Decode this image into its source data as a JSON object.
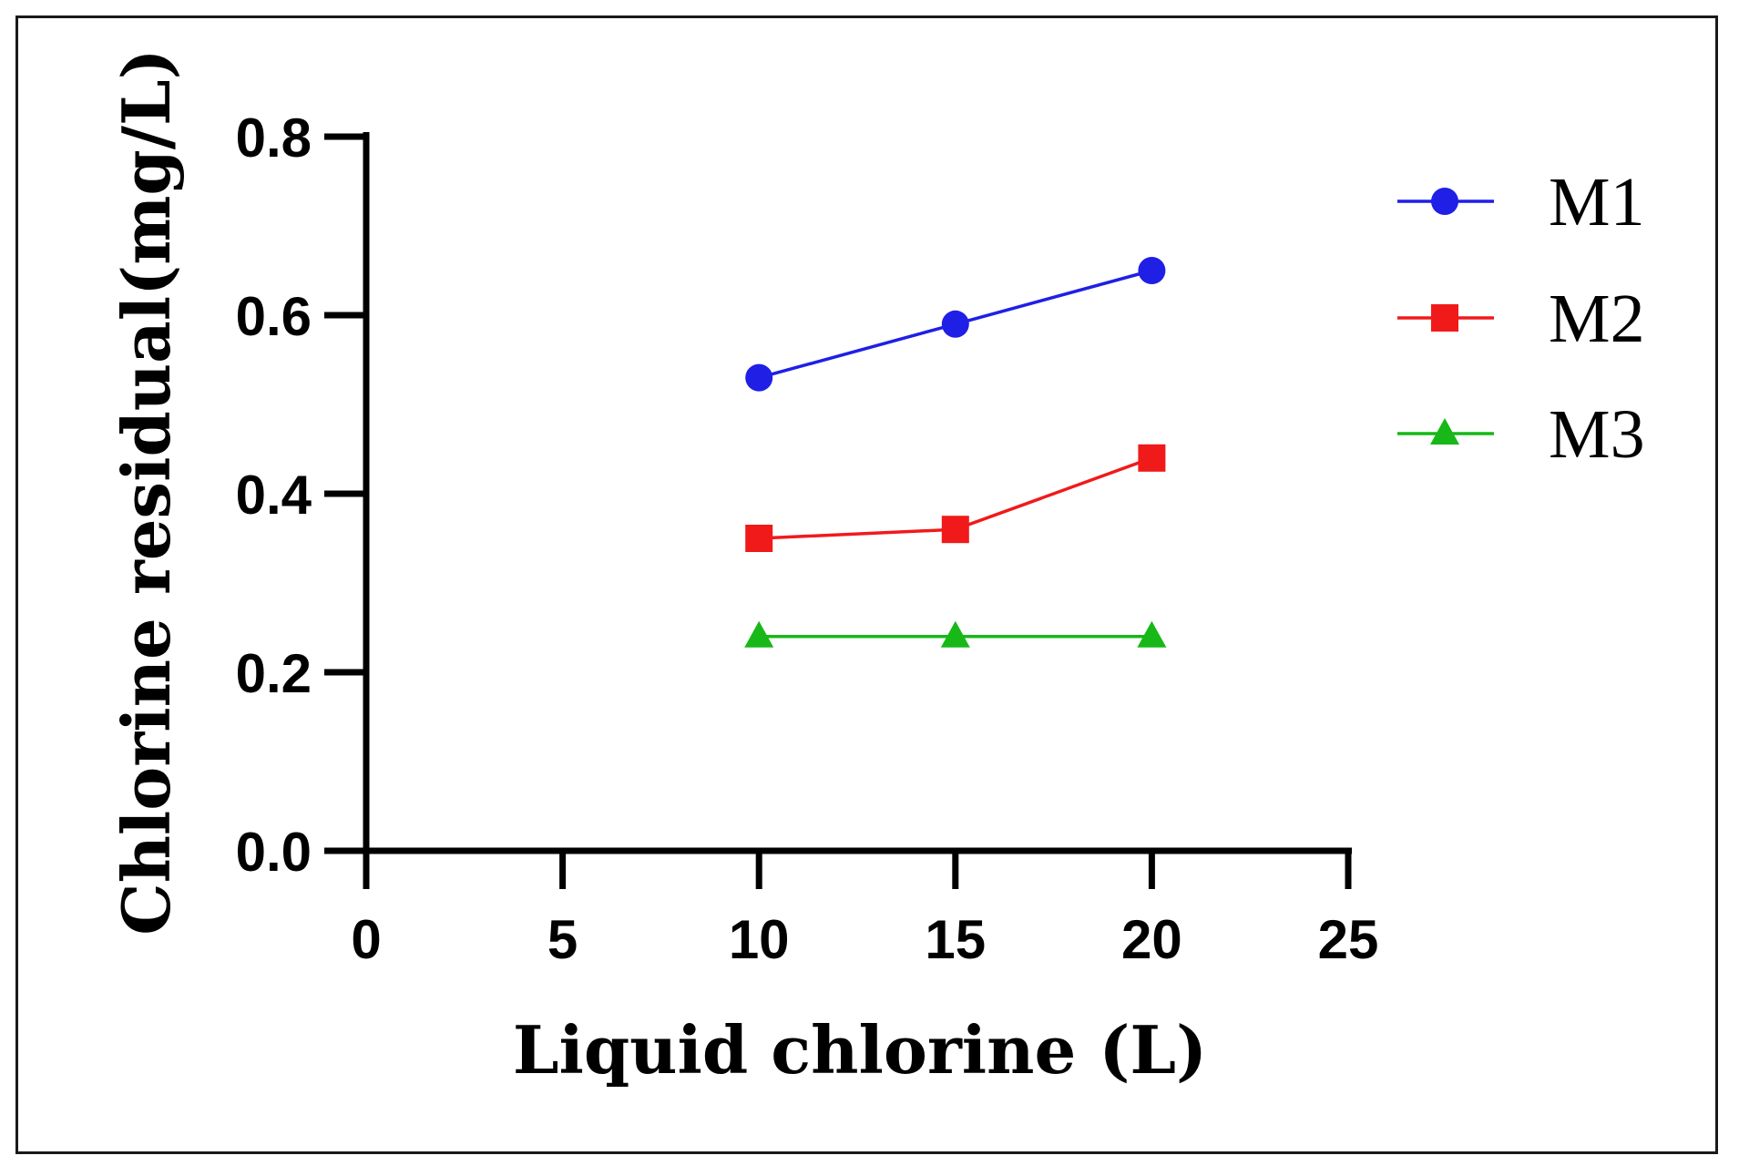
{
  "chart_data": {
    "type": "line",
    "title": "",
    "xlabel": "Liquid chlorine (L)",
    "ylabel": "Chlorine residual(mg/L)",
    "xlim": [
      0,
      25
    ],
    "ylim": [
      0,
      0.8
    ],
    "xticks": [
      "0",
      "5",
      "10",
      "15",
      "20",
      "25"
    ],
    "yticks": [
      "0.0",
      "0.2",
      "0.4",
      "0.6",
      "0.8"
    ],
    "grid": false,
    "legend_position": "top-right",
    "x": [
      10,
      15,
      20
    ],
    "series": [
      {
        "name": "M1",
        "values": [
          0.53,
          0.59,
          0.65
        ],
        "color": "#1f1fe6",
        "marker": "circle"
      },
      {
        "name": "M2",
        "values": [
          0.35,
          0.36,
          0.44
        ],
        "color": "#f01a1a",
        "marker": "square"
      },
      {
        "name": "M3",
        "values": [
          0.24,
          0.24,
          0.24
        ],
        "color": "#17b817",
        "marker": "triangle"
      }
    ]
  }
}
